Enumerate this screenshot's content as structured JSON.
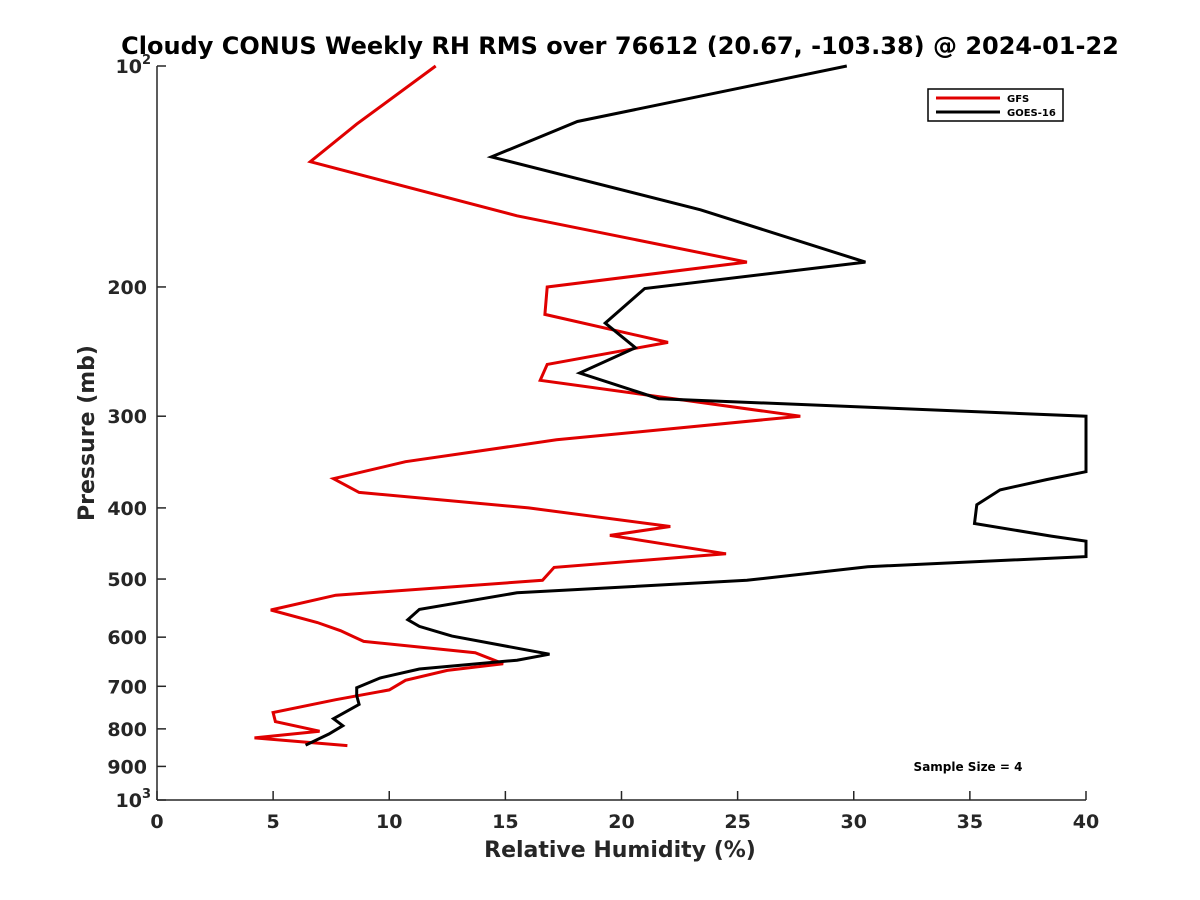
{
  "chart_data": {
    "type": "line",
    "title": "Cloudy CONUS Weekly RH RMS over 76612 (20.67, -103.38) @ 2024-01-22",
    "xlabel": "Relative Humidity (%)",
    "ylabel": "Pressure (mb)",
    "xlim": [
      0,
      40
    ],
    "ylim": [
      100,
      1000
    ],
    "yscale": "log",
    "y_reversed": true,
    "grid": false,
    "legend_position": "top-right",
    "x_ticks": [
      0,
      5,
      10,
      15,
      20,
      25,
      30,
      35,
      40
    ],
    "y_ticks": [
      {
        "value": 100,
        "label": "10",
        "sup": "2"
      },
      {
        "value": 200,
        "label": "200"
      },
      {
        "value": 300,
        "label": "300"
      },
      {
        "value": 400,
        "label": "400"
      },
      {
        "value": 500,
        "label": "500"
      },
      {
        "value": 600,
        "label": "600"
      },
      {
        "value": 700,
        "label": "700"
      },
      {
        "value": 800,
        "label": "800"
      },
      {
        "value": 900,
        "label": "900"
      },
      {
        "value": 1000,
        "label": "10",
        "sup": "3"
      }
    ],
    "annotation": "Sample Size = 4",
    "series": [
      {
        "name": "GFS",
        "color": "#e00000",
        "points": [
          [
            12.0,
            100
          ],
          [
            8.6,
            120
          ],
          [
            6.6,
            135
          ],
          [
            15.5,
            160
          ],
          [
            25.4,
            185
          ],
          [
            16.8,
            200
          ],
          [
            16.7,
            218
          ],
          [
            22.0,
            238
          ],
          [
            16.8,
            255
          ],
          [
            16.5,
            268
          ],
          [
            27.7,
            300
          ],
          [
            17.2,
            323
          ],
          [
            10.7,
            346
          ],
          [
            7.6,
            365
          ],
          [
            8.7,
            381
          ],
          [
            16.0,
            400
          ],
          [
            22.1,
            424
          ],
          [
            19.5,
            436
          ],
          [
            24.5,
            462
          ],
          [
            17.1,
            482
          ],
          [
            16.6,
            502
          ],
          [
            7.7,
            526
          ],
          [
            4.9,
            551
          ],
          [
            6.9,
            573
          ],
          [
            7.9,
            588
          ],
          [
            8.9,
            608
          ],
          [
            13.7,
            630
          ],
          [
            14.9,
            652
          ],
          [
            12.5,
            666
          ],
          [
            10.7,
            687
          ],
          [
            10.0,
            708
          ],
          [
            7.7,
            730
          ],
          [
            5.0,
            760
          ],
          [
            5.1,
            782
          ],
          [
            7.0,
            806
          ],
          [
            4.2,
            823
          ],
          [
            8.2,
            843
          ]
        ]
      },
      {
        "name": "GOES-16",
        "color": "#000000",
        "points": [
          [
            29.7,
            100
          ],
          [
            18.1,
            119
          ],
          [
            14.4,
            133
          ],
          [
            23.4,
            157
          ],
          [
            30.5,
            185
          ],
          [
            21.0,
            201
          ],
          [
            19.3,
            224
          ],
          [
            20.6,
            242
          ],
          [
            18.2,
            262
          ],
          [
            21.6,
            284
          ],
          [
            40.0,
            300
          ],
          [
            40.0,
            357
          ],
          [
            38.3,
            366
          ],
          [
            36.3,
            378
          ],
          [
            35.3,
            396
          ],
          [
            35.2,
            420
          ],
          [
            38.5,
            437
          ],
          [
            40.0,
            444
          ],
          [
            40.0,
            466
          ],
          [
            30.6,
            481
          ],
          [
            25.4,
            502
          ],
          [
            15.5,
            522
          ],
          [
            11.3,
            550
          ],
          [
            10.8,
            568
          ],
          [
            11.3,
            580
          ],
          [
            12.7,
            598
          ],
          [
            16.9,
            633
          ],
          [
            15.5,
            645
          ],
          [
            11.3,
            663
          ],
          [
            9.6,
            682
          ],
          [
            8.6,
            703
          ],
          [
            8.6,
            721
          ],
          [
            8.7,
            741
          ],
          [
            7.6,
            775
          ],
          [
            8.0,
            792
          ],
          [
            7.4,
            813
          ],
          [
            6.4,
            842
          ]
        ]
      }
    ]
  }
}
